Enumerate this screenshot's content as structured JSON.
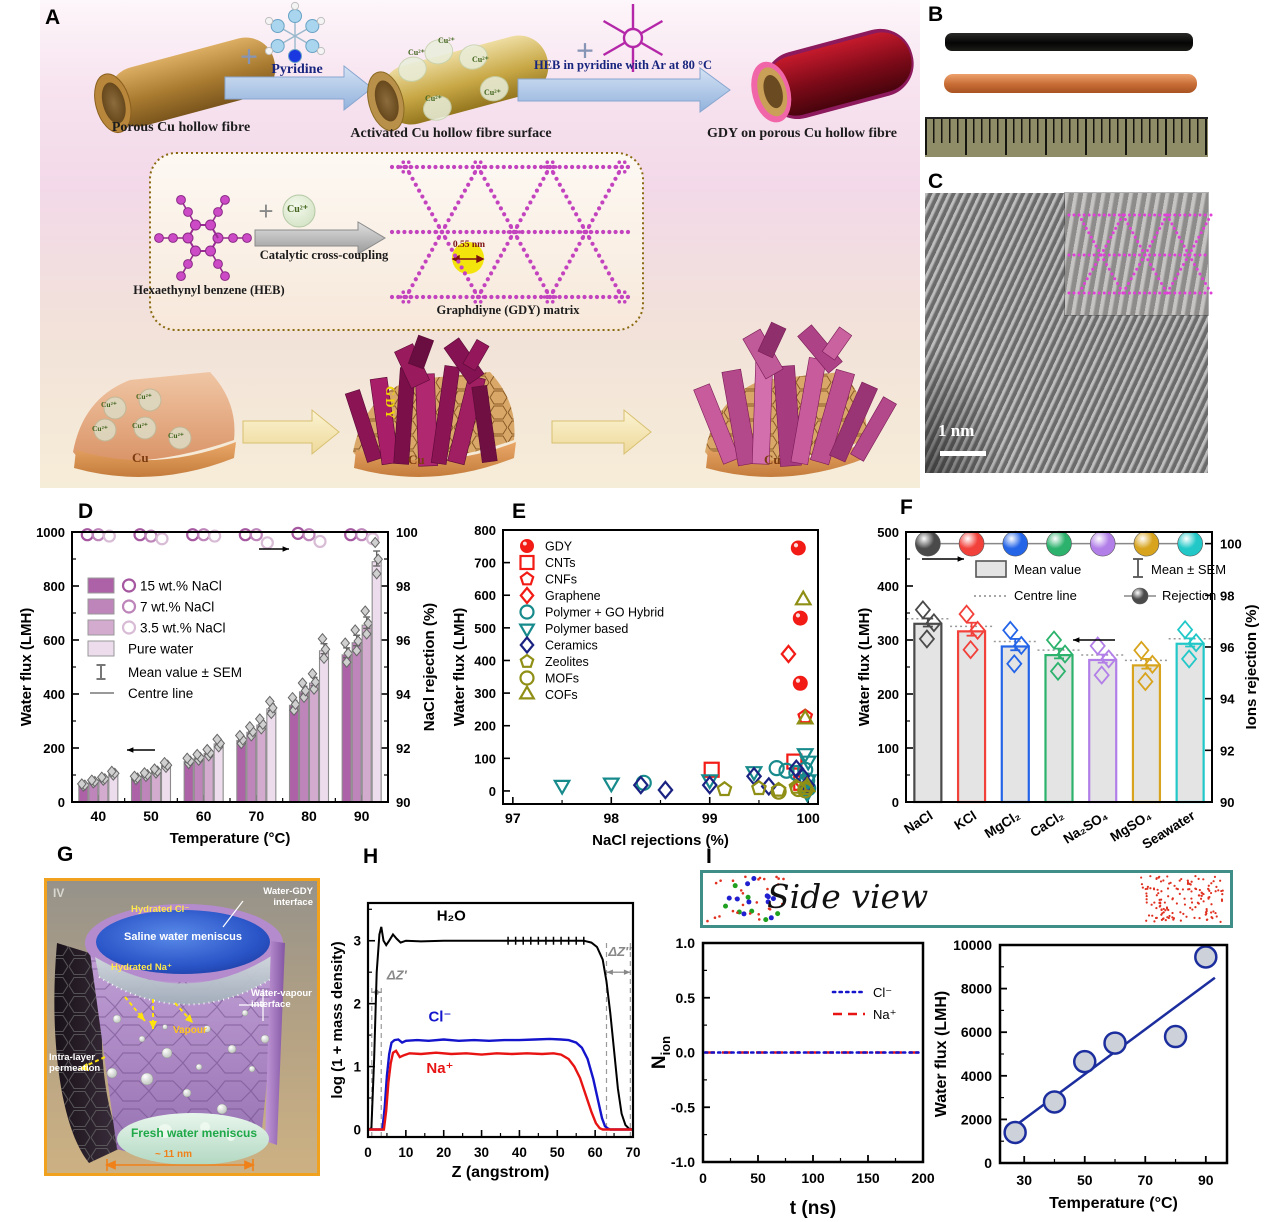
{
  "labels": {
    "A": "A",
    "B": "B",
    "C": "C",
    "D": "D",
    "E": "E",
    "F": "F",
    "G": "G",
    "H": "H",
    "I": "I"
  },
  "panelA": {
    "fibre1": "Porous Cu hollow fibre",
    "plus": "+",
    "pyridine": "Pyridine",
    "fibre2": "Activated Cu hollow fibre surface",
    "heb_arrow": "HEB in pyridine with Ar at 80 °C",
    "fibre3": "GDY on porous Cu hollow fibre",
    "cu_ion": "Cu²⁺",
    "heb": "Hexaethynyl benzene (HEB)",
    "coupling": "Catalytic cross-coupling",
    "gdy_matrix": "Graphdiyne (GDY) matrix",
    "pore": "0.55 nm",
    "cu": "Cu",
    "gdy": "GDY"
  },
  "panelC": {
    "scale": "1 nm"
  },
  "panelG": {
    "corner": "IV",
    "water_gdy": "Water-GDY interface",
    "hydrated_cl": "Hydrated Cl⁻",
    "saline": "Saline water meniscus",
    "hydrated_na": "Hydrated Na⁺",
    "water_vapour": "Water-vapour interface",
    "vapour": "Vapour",
    "intra": "Intra-layer permeation",
    "fresh": "Fresh water meniscus",
    "dim": "~ 11 nm"
  },
  "panelI": {
    "side_view": "Side view"
  },
  "chart_data": [
    {
      "id": "chartD",
      "type": "bar",
      "xlabel": "Temperature (°C)",
      "ylabel_left": "Water flux (LMH)",
      "ylabel_right": "NaCl rejection (%)",
      "xlim": [
        35,
        95
      ],
      "ylim_left": [
        0,
        1000
      ],
      "ylim_right": [
        90,
        100
      ],
      "xticks": [
        40,
        50,
        60,
        70,
        80,
        90
      ],
      "yticks_left": [
        0,
        200,
        400,
        600,
        800,
        1000
      ],
      "yticks_right": [
        90,
        92,
        94,
        96,
        98,
        100
      ],
      "categories": [
        40,
        50,
        60,
        70,
        80,
        90
      ],
      "series": [
        {
          "name": "15 wt.% NaCl",
          "color": "#ad62a7",
          "circle_color": "#a557a0",
          "values": [
            62,
            88,
            150,
            228,
            358,
            545
          ],
          "rejection": [
            99.9,
            99.9,
            99.9,
            99.9,
            99.95,
            99.9
          ]
        },
        {
          "name": "7 wt.% NaCl",
          "color": "#bd85b9",
          "circle_color": "#bd85b9",
          "values": [
            75,
            100,
            163,
            258,
            408,
            590
          ],
          "rejection": [
            99.9,
            99.85,
            99.9,
            99.9,
            99.9,
            99.9
          ]
        },
        {
          "name": "3.5 wt.% NaCl",
          "color": "#d2abcf",
          "circle_color": "#d8bcd6",
          "values": [
            85,
            113,
            180,
            285,
            440,
            655
          ],
          "rejection": [
            99.85,
            99.75,
            99.85,
            99.6,
            99.65,
            99.75
          ]
        },
        {
          "name": "Pure water",
          "color": "#ecdcec",
          "values": [
            105,
            135,
            215,
            345,
            560,
            890
          ]
        }
      ],
      "legend_extra": [
        "Mean value ± SEM",
        "Centre line"
      ]
    },
    {
      "id": "chartE",
      "type": "scatter",
      "xlabel": "NaCl rejections (%)",
      "ylabel": "Water flux (LMH)",
      "xlim": [
        96.9,
        100.1
      ],
      "ylim": [
        -40,
        800
      ],
      "xticks": [
        97,
        98,
        99,
        100
      ],
      "yticks": [
        0,
        100,
        200,
        300,
        400,
        500,
        600,
        700,
        800
      ],
      "series": [
        {
          "name": "GDY",
          "marker": "circle-filled",
          "color": "#f21b15",
          "points": [
            [
              99.9,
              745
            ],
            [
              99.92,
              530
            ],
            [
              99.92,
              330
            ]
          ]
        },
        {
          "name": "CNTs",
          "marker": "square",
          "color": "#f21b15",
          "points": [
            [
              99.02,
              65
            ],
            [
              99.86,
              90
            ],
            [
              99.93,
              25
            ]
          ]
        },
        {
          "name": "CNFs",
          "marker": "pentagon",
          "color": "#f21b15",
          "points": [
            [
              99.97,
              228
            ]
          ]
        },
        {
          "name": "Graphene",
          "marker": "diamond",
          "color": "#f21b15",
          "points": [
            [
              99.8,
              420
            ],
            [
              99.94,
              25
            ]
          ]
        },
        {
          "name": "Polymer + GO Hybrid",
          "marker": "circle",
          "color": "#178a8c",
          "points": [
            [
              98.33,
              25
            ],
            [
              99.68,
              70
            ],
            [
              99.78,
              62
            ],
            [
              99.88,
              55
            ],
            [
              99.97,
              65
            ],
            [
              99.99,
              32
            ],
            [
              100,
              8
            ]
          ]
        },
        {
          "name": "Polymer based",
          "marker": "triangle-down",
          "color": "#178a8c",
          "points": [
            [
              97.5,
              18
            ],
            [
              98,
              25
            ],
            [
              99,
              35
            ],
            [
              99.45,
              60
            ],
            [
              99.97,
              115
            ],
            [
              100,
              92
            ],
            [
              100,
              35
            ],
            [
              99.99,
              -5
            ]
          ]
        },
        {
          "name": "Ceramics",
          "marker": "diamond",
          "color": "#1a2282",
          "points": [
            [
              98.3,
              18
            ],
            [
              98.55,
              3
            ],
            [
              99,
              18
            ],
            [
              99.45,
              45
            ],
            [
              99.6,
              14
            ],
            [
              99.88,
              68
            ],
            [
              99.94,
              45
            ],
            [
              99.99,
              18
            ]
          ]
        },
        {
          "name": "Zeolites",
          "marker": "pentagon",
          "color": "#8f8f15",
          "points": [
            [
              99.15,
              5
            ],
            [
              99.5,
              8
            ],
            [
              99.7,
              3
            ],
            [
              99.88,
              12
            ],
            [
              99.97,
              8
            ]
          ]
        },
        {
          "name": "MOFs",
          "marker": "circle",
          "color": "#8f8f15",
          "points": [
            [
              99.7,
              -2
            ],
            [
              99.9,
              6
            ],
            [
              99.97,
              2
            ]
          ]
        },
        {
          "name": "COFs",
          "marker": "triangle-up",
          "color": "#8f8f15",
          "points": [
            [
              99.95,
              585
            ],
            [
              99.97,
              220
            ],
            [
              99.99,
              12
            ]
          ]
        }
      ]
    },
    {
      "id": "chartF",
      "type": "bar",
      "ylabel_left": "Water flux (LMH)",
      "ylabel_right": "Ions rejection (%)",
      "ylim_left": [
        0,
        500
      ],
      "ylim_right": [
        90,
        100.45
      ],
      "yticks_left": [
        0,
        100,
        200,
        300,
        400,
        500
      ],
      "yticks_right": [
        90,
        92,
        94,
        96,
        98,
        100
      ],
      "categories": [
        "NaCl",
        "KCl",
        "MgCl₂",
        "CaCl₂",
        "Na₂SO₄",
        "MgSO₄",
        "Seawater"
      ],
      "values": [
        330,
        316,
        288,
        272,
        263,
        253,
        293
      ],
      "errors": [
        10,
        16,
        14,
        12,
        10,
        12,
        10
      ],
      "colors": [
        "#4a4a4a",
        "#f2403a",
        "#2465e8",
        "#2cb26c",
        "#b27fe8",
        "#d8a41e",
        "#22c8c8"
      ],
      "rejection": [
        100,
        100,
        100,
        100,
        100,
        100,
        100
      ],
      "bar_fill": "#e4e4e4",
      "legend": [
        "Mean value",
        "Centre line",
        "Mean ± SEM",
        "Rejection"
      ]
    },
    {
      "id": "chartH",
      "type": "line",
      "xlabel": "Z (angstrom)",
      "ylabel": "log (1 + mass density)",
      "xlim": [
        0,
        70
      ],
      "ylim": [
        -0.12,
        3.6
      ],
      "xticks": [
        0,
        10,
        20,
        30,
        40,
        50,
        60,
        70
      ],
      "yticks": [
        0,
        1,
        2,
        3
      ],
      "annotations": {
        "h2o": "H₂O",
        "cl": "Cl⁻",
        "na": "Na⁺",
        "dz1": "ΔZ′",
        "dz2": "ΔZ″"
      },
      "dashed_x": [
        1,
        3.5,
        63,
        69.3
      ],
      "series": [
        {
          "name": "H₂O",
          "color": "#000000",
          "points": [
            [
              0,
              0
            ],
            [
              0.9,
              0.02
            ],
            [
              1.6,
              1.1
            ],
            [
              2.3,
              2.5
            ],
            [
              3,
              3.1
            ],
            [
              3.5,
              3.22
            ],
            [
              4.1,
              3
            ],
            [
              4.8,
              2.93
            ],
            [
              5.6,
              3
            ],
            [
              6.6,
              3.1
            ],
            [
              7.6,
              3.03
            ],
            [
              8.6,
              2.97
            ],
            [
              10,
              3
            ],
            [
              14,
              2.99
            ],
            [
              20,
              3
            ],
            [
              28,
              3
            ],
            [
              36,
              3
            ],
            [
              44,
              3
            ],
            [
              52,
              3
            ],
            [
              57,
              3
            ],
            [
              59,
              2.97
            ],
            [
              60.5,
              2.9
            ],
            [
              62,
              2.7
            ],
            [
              63,
              2.35
            ],
            [
              64,
              1.85
            ],
            [
              65,
              1.25
            ],
            [
              66,
              0.65
            ],
            [
              67,
              0.25
            ],
            [
              68,
              0.07
            ],
            [
              69,
              0.01
            ],
            [
              70,
              0
            ]
          ]
        },
        {
          "name": "Cl⁻",
          "color": "#1414cc",
          "points": [
            [
              0,
              0
            ],
            [
              3.8,
              0
            ],
            [
              4.4,
              0.35
            ],
            [
              5,
              0.85
            ],
            [
              5.6,
              1.2
            ],
            [
              6.2,
              1.38
            ],
            [
              7,
              1.42
            ],
            [
              8,
              1.43
            ],
            [
              9,
              1.38
            ],
            [
              10,
              1.41
            ],
            [
              13,
              1.42
            ],
            [
              16,
              1.41
            ],
            [
              20,
              1.43
            ],
            [
              24,
              1.41
            ],
            [
              28,
              1.42
            ],
            [
              32,
              1.41
            ],
            [
              36,
              1.42
            ],
            [
              40,
              1.42
            ],
            [
              44,
              1.43
            ],
            [
              48,
              1.44
            ],
            [
              51,
              1.43
            ],
            [
              53,
              1.42
            ],
            [
              55,
              1.38
            ],
            [
              56.5,
              1.3
            ],
            [
              58,
              1.12
            ],
            [
              59.5,
              0.8
            ],
            [
              60.8,
              0.45
            ],
            [
              61.8,
              0.18
            ],
            [
              62.6,
              0.05
            ],
            [
              63.5,
              0.01
            ],
            [
              64,
              0
            ],
            [
              70,
              0
            ]
          ]
        },
        {
          "name": "Na⁺",
          "color": "#e81414",
          "points": [
            [
              0,
              0
            ],
            [
              4.2,
              0
            ],
            [
              4.8,
              0.3
            ],
            [
              5.4,
              0.75
            ],
            [
              6,
              1.05
            ],
            [
              6.6,
              1.22
            ],
            [
              7.4,
              1.25
            ],
            [
              8.4,
              1.15
            ],
            [
              9.5,
              1.18
            ],
            [
              11,
              1.21
            ],
            [
              14,
              1.2
            ],
            [
              18,
              1.22
            ],
            [
              22,
              1.2
            ],
            [
              26,
              1.21
            ],
            [
              30,
              1.19
            ],
            [
              34,
              1.21
            ],
            [
              38,
              1.2
            ],
            [
              42,
              1.21
            ],
            [
              46,
              1.2
            ],
            [
              49,
              1.21
            ],
            [
              51,
              1.19
            ],
            [
              53,
              1.12
            ],
            [
              54.5,
              1
            ],
            [
              56,
              0.82
            ],
            [
              57.5,
              0.55
            ],
            [
              59,
              0.28
            ],
            [
              60.2,
              0.1
            ],
            [
              61.2,
              0.02
            ],
            [
              62,
              0
            ],
            [
              70,
              0
            ]
          ]
        }
      ]
    },
    {
      "id": "chartI1",
      "type": "line",
      "xlabel": "t (ns)",
      "ylabel": "N_ion",
      "xlim": [
        0,
        200
      ],
      "ylim": [
        -1,
        1
      ],
      "xticks": [
        0,
        50,
        100,
        150,
        200
      ],
      "ytick_labels": [
        "1.0",
        "0.5",
        "0.0",
        "-0.5",
        "-1.0"
      ],
      "yticks": [
        1,
        0.5,
        0,
        -0.5,
        -1
      ],
      "series": [
        {
          "name": "Cl⁻",
          "color": "#1414cc",
          "style": "dotted",
          "points": [
            [
              0,
              0
            ],
            [
              200,
              0
            ]
          ]
        },
        {
          "name": "Na⁺",
          "color": "#e81414",
          "style": "dashed",
          "points": [
            [
              0,
              0
            ],
            [
              200,
              0
            ]
          ]
        }
      ]
    },
    {
      "id": "chartI2",
      "type": "scatter",
      "xlabel": "Temperature (°C)",
      "ylabel": "Water flux (LMH)",
      "xlim": [
        22,
        97
      ],
      "ylim": [
        0,
        10000
      ],
      "xticks": [
        30,
        50,
        70,
        90
      ],
      "yticks": [
        0,
        2000,
        4000,
        6000,
        8000,
        10000
      ],
      "points": [
        [
          27,
          1400
        ],
        [
          40,
          2800
        ],
        [
          50,
          4650
        ],
        [
          60,
          5500
        ],
        [
          80,
          5800
        ],
        [
          90,
          9450
        ]
      ],
      "fit_line": [
        [
          25,
          1500
        ],
        [
          93,
          8500
        ]
      ],
      "marker_color": "#cdd2da",
      "marker_edge": "#1c2e9e",
      "line_color": "#1c2e9e"
    }
  ]
}
